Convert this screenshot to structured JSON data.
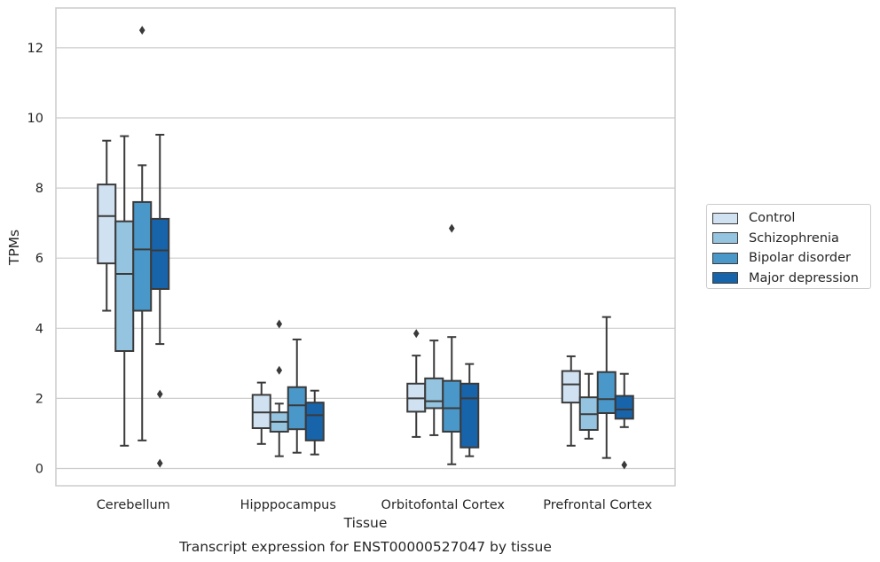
{
  "chart_data": {
    "type": "box",
    "title": "Transcript expression for ENST00000527047 by tissue",
    "xlabel": "Tissue",
    "ylabel": "TPMs",
    "ylim": [
      -0.5,
      13.0
    ],
    "yticks": [
      0,
      2,
      4,
      6,
      8,
      10,
      12
    ],
    "grid": "horizontal",
    "legend_position": "right",
    "categories": [
      "Cerebellum",
      "Hipppocampus",
      "Orbitofontal Cortex",
      "Prefrontal Cortex"
    ],
    "series": [
      {
        "name": "Control",
        "color": "#d0e1f2",
        "boxes": [
          {
            "min": 4.5,
            "q1": 5.85,
            "median": 7.2,
            "q3": 8.1,
            "max": 9.35,
            "outliers": []
          },
          {
            "min": 0.7,
            "q1": 1.15,
            "median": 1.6,
            "q3": 2.1,
            "max": 2.45,
            "outliers": []
          },
          {
            "min": 0.9,
            "q1": 1.62,
            "median": 2.0,
            "q3": 2.42,
            "max": 3.22,
            "outliers": [
              3.85
            ]
          },
          {
            "min": 0.65,
            "q1": 1.88,
            "median": 2.4,
            "q3": 2.78,
            "max": 3.2,
            "outliers": []
          }
        ]
      },
      {
        "name": "Schizophrenia",
        "color": "#94c4df",
        "boxes": [
          {
            "min": 0.65,
            "q1": 3.35,
            "median": 5.55,
            "q3": 7.05,
            "max": 9.48,
            "outliers": []
          },
          {
            "min": 0.35,
            "q1": 1.05,
            "median": 1.33,
            "q3": 1.6,
            "max": 1.85,
            "outliers": [
              4.12,
              2.8
            ]
          },
          {
            "min": 0.95,
            "q1": 1.72,
            "median": 1.92,
            "q3": 2.57,
            "max": 3.65,
            "outliers": []
          },
          {
            "min": 0.85,
            "q1": 1.1,
            "median": 1.55,
            "q3": 2.03,
            "max": 2.7,
            "outliers": []
          }
        ]
      },
      {
        "name": "Bipolar disorder",
        "color": "#4a98c9",
        "boxes": [
          {
            "min": 0.8,
            "q1": 4.5,
            "median": 6.25,
            "q3": 7.6,
            "max": 8.65,
            "outliers": [
              12.5
            ]
          },
          {
            "min": 0.45,
            "q1": 1.12,
            "median": 1.8,
            "q3": 2.32,
            "max": 3.68,
            "outliers": []
          },
          {
            "min": 0.12,
            "q1": 1.05,
            "median": 1.72,
            "q3": 2.5,
            "max": 3.75,
            "outliers": [
              6.85
            ]
          },
          {
            "min": 0.3,
            "q1": 1.58,
            "median": 1.98,
            "q3": 2.75,
            "max": 4.32,
            "outliers": []
          }
        ]
      },
      {
        "name": "Major depression",
        "color": "#1764ab",
        "boxes": [
          {
            "min": 3.55,
            "q1": 5.12,
            "median": 6.22,
            "q3": 7.12,
            "max": 9.52,
            "outliers": [
              2.12,
              0.15
            ]
          },
          {
            "min": 0.4,
            "q1": 0.8,
            "median": 1.52,
            "q3": 1.88,
            "max": 2.22,
            "outliers": []
          },
          {
            "min": 0.35,
            "q1": 0.6,
            "median": 2.0,
            "q3": 2.42,
            "max": 2.98,
            "outliers": []
          },
          {
            "min": 1.18,
            "q1": 1.42,
            "median": 1.68,
            "q3": 2.07,
            "max": 2.7,
            "outliers": [
              0.1
            ]
          }
        ]
      }
    ]
  }
}
